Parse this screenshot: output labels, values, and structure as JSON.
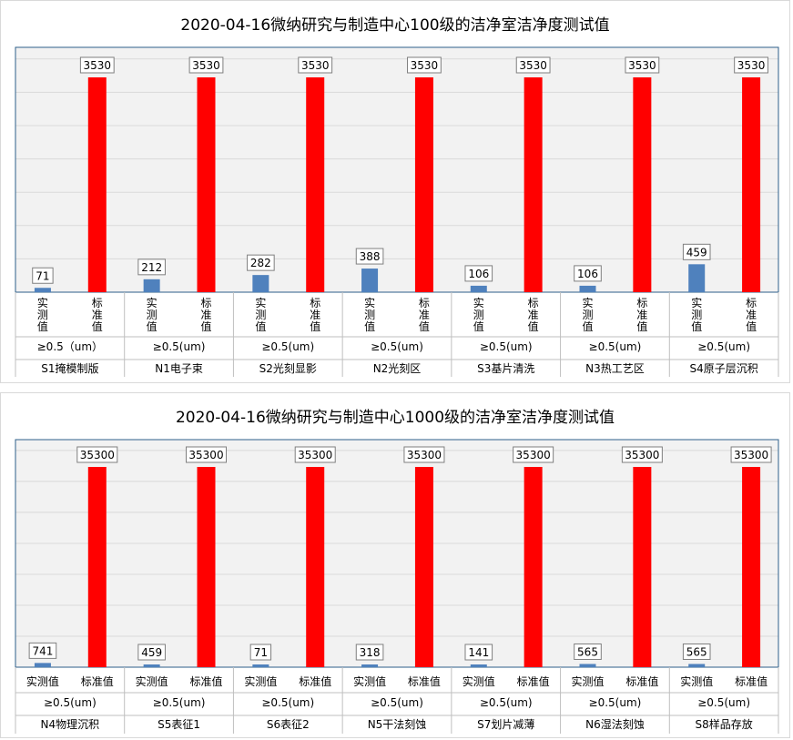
{
  "colors": {
    "measured": "#4f81bd",
    "standard": "#ff0000",
    "grid": "#d9d9d9",
    "plot_bg": "#f2f2f2",
    "border": "#2e5f8a"
  },
  "chart_data": [
    {
      "type": "bar",
      "title": "2020-04-16微纳研究与制造中心100级的洁净室洁净度测试值",
      "groups": [
        "S1掩模制版",
        "N1电子束",
        "S2光刻显影",
        "N2光刻区",
        "S3基片清洗",
        "N3热工艺区",
        "S4原子层沉积"
      ],
      "particle_sizes": [
        "≥0.5（um）",
        "≥0.5(um)",
        "≥0.5(um)",
        "≥0.5(um)",
        "≥0.5(um)",
        "≥0.5(um)",
        "≥0.5(um)"
      ],
      "series_labels": [
        "实测值",
        "标准值"
      ],
      "series": [
        {
          "name": "实测值",
          "values": [
            71,
            212,
            282,
            388,
            106,
            106,
            459
          ]
        },
        {
          "name": "标准值",
          "values": [
            3530,
            3530,
            3530,
            3530,
            3530,
            3530,
            3530
          ]
        }
      ],
      "ylim": [
        0,
        3530
      ],
      "grid": true,
      "vertical_series_labels": true
    },
    {
      "type": "bar",
      "title": "2020-04-16微纳研究与制造中心1000级的洁净室洁净度测试值",
      "groups": [
        "N4物理沉积",
        "S5表征1",
        "S6表征2",
        "N5干法刻蚀",
        "S7划片减薄",
        "N6湿法刻蚀",
        "S8样品存放"
      ],
      "particle_sizes": [
        "≥0.5(um)",
        "≥0.5(um)",
        "≥0.5(um)",
        "≥0.5(um)",
        "≥0.5(um)",
        "≥0.5(um)",
        "≥0.5(um)"
      ],
      "series_labels": [
        "实测值",
        "标准值"
      ],
      "series": [
        {
          "name": "实测值",
          "values": [
            741,
            459,
            71,
            318,
            141,
            565,
            565
          ]
        },
        {
          "name": "标准值",
          "values": [
            35300,
            35300,
            35300,
            35300,
            35300,
            35300,
            35300
          ]
        }
      ],
      "ylim": [
        0,
        35300
      ],
      "grid": true,
      "vertical_series_labels": false
    }
  ]
}
